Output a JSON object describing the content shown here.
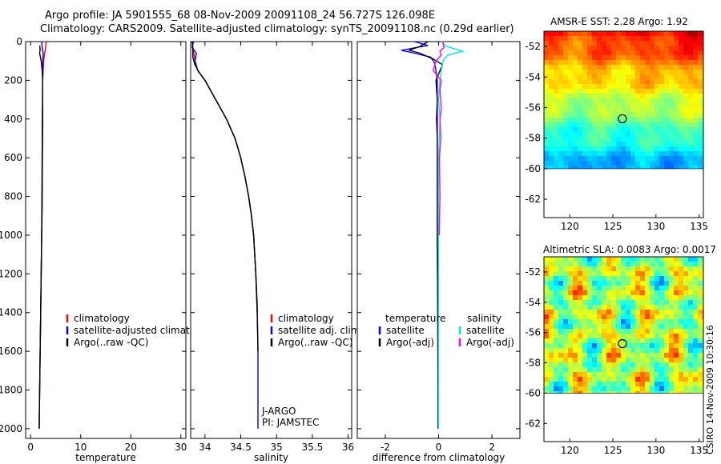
{
  "header": {
    "line1": "Argo profile: JA 5901555_68 08-Nov-2009 20091108_24 56.727S 126.098E",
    "line2": "Climatology: CARS2009. Satellite-adjusted climatology: synTS_20091108.nc (0.29d earlier)"
  },
  "stamp": "CSIRO 14-Nov-2009 10:30:16",
  "chart_data": [
    {
      "type": "line",
      "id": "temperature",
      "xlabel": "temperature",
      "ylabel": "",
      "xlim": [
        -1,
        31
      ],
      "ylim": [
        2050,
        0
      ],
      "xticks": [
        0,
        10,
        20,
        30
      ],
      "yticks": [
        0,
        200,
        400,
        600,
        800,
        1000,
        1200,
        1400,
        1600,
        1800,
        2000
      ],
      "legend": [
        "climatology",
        "satellite-adjusted climatology",
        "Argo(..raw -QC)"
      ],
      "series": [
        {
          "name": "climatology",
          "color": "#ff0000",
          "points": [
            [
              3.1,
              0
            ],
            [
              3.0,
              30
            ],
            [
              2.8,
              60
            ],
            [
              2.6,
              100
            ],
            [
              2.5,
              150
            ],
            [
              2.4,
              200
            ],
            [
              2.4,
              300
            ],
            [
              2.35,
              400
            ],
            [
              2.3,
              600
            ],
            [
              2.3,
              880
            ],
            [
              2.2,
              1000
            ],
            [
              2.1,
              1200
            ],
            [
              2.0,
              1400
            ],
            [
              1.9,
              1600
            ],
            [
              1.8,
              1800
            ],
            [
              1.7,
              2000
            ]
          ]
        },
        {
          "name": "satellite-adjusted climatology",
          "color": "#0000ff",
          "points": [
            [
              2.2,
              0
            ],
            [
              2.3,
              30
            ],
            [
              2.5,
              60
            ],
            [
              2.4,
              100
            ],
            [
              2.4,
              150
            ],
            [
              2.4,
              200
            ],
            [
              2.35,
              400
            ],
            [
              2.3,
              600
            ],
            [
              2.2,
              1000
            ],
            [
              2.0,
              1400
            ],
            [
              1.8,
              1800
            ],
            [
              1.7,
              2000
            ]
          ]
        },
        {
          "name": "Argo(..raw -QC)",
          "color": "#000000",
          "points": [
            [
              1.8,
              20
            ],
            [
              1.9,
              40
            ],
            [
              1.8,
              60
            ],
            [
              2.1,
              100
            ],
            [
              2.3,
              150
            ],
            [
              2.4,
              200
            ],
            [
              2.4,
              400
            ],
            [
              2.35,
              600
            ],
            [
              2.3,
              800
            ],
            [
              2.2,
              1000
            ],
            [
              2.1,
              1200
            ],
            [
              2.0,
              1400
            ],
            [
              1.9,
              1600
            ],
            [
              1.8,
              1800
            ],
            [
              1.7,
              2000
            ]
          ]
        }
      ]
    },
    {
      "type": "line",
      "id": "salinity",
      "xlabel": "salinity",
      "xlim": [
        33.8,
        36.05
      ],
      "ylim": [
        2050,
        0
      ],
      "xticks": [
        34,
        34.5,
        35,
        35.5,
        36
      ],
      "legend": [
        "climatology",
        "satellite adj. clim.",
        "Argo(..raw -QC)"
      ],
      "annotations": [
        "J-ARGO",
        "PI: JAMSTEC"
      ],
      "series": [
        {
          "name": "climatology",
          "color": "#ff0000",
          "points": [
            [
              33.82,
              0
            ],
            [
              33.84,
              50
            ],
            [
              33.86,
              100
            ],
            [
              33.9,
              150
            ],
            [
              34.0,
              200
            ],
            [
              34.15,
              300
            ],
            [
              34.3,
              400
            ],
            [
              34.42,
              500
            ],
            [
              34.5,
              600
            ],
            [
              34.56,
              700
            ],
            [
              34.61,
              800
            ],
            [
              34.65,
              900
            ],
            [
              34.68,
              1000
            ],
            [
              34.71,
              1200
            ],
            [
              34.73,
              1350
            ],
            [
              34.73,
              1400
            ]
          ]
        },
        {
          "name": "satellite adj. clim.",
          "color": "#0000ff",
          "points": [
            [
              33.84,
              0
            ],
            [
              33.82,
              30
            ],
            [
              33.88,
              60
            ],
            [
              33.86,
              100
            ],
            [
              33.9,
              150
            ],
            [
              34.0,
              200
            ],
            [
              34.15,
              300
            ],
            [
              34.3,
              400
            ],
            [
              34.42,
              500
            ],
            [
              34.5,
              600
            ],
            [
              34.56,
              700
            ],
            [
              34.61,
              800
            ],
            [
              34.65,
              900
            ],
            [
              34.68,
              1000
            ],
            [
              34.71,
              1200
            ],
            [
              34.73,
              1400
            ],
            [
              34.74,
              1600
            ],
            [
              34.74,
              1800
            ],
            [
              34.74,
              2000
            ]
          ]
        },
        {
          "name": "Argo(..raw -QC)",
          "color": "#000000",
          "points": [
            [
              33.82,
              0
            ],
            [
              33.83,
              40
            ],
            [
              33.83,
              80
            ],
            [
              33.86,
              120
            ],
            [
              33.92,
              160
            ],
            [
              34.0,
              200
            ],
            [
              34.15,
              300
            ],
            [
              34.3,
              400
            ],
            [
              34.42,
              500
            ],
            [
              34.5,
              600
            ],
            [
              34.56,
              700
            ],
            [
              34.61,
              800
            ],
            [
              34.65,
              900
            ],
            [
              34.68,
              1000
            ],
            [
              34.71,
              1200
            ],
            [
              34.73,
              1400
            ],
            [
              34.74,
              1600
            ]
          ]
        }
      ]
    },
    {
      "type": "line",
      "id": "difference",
      "xlabel": "difference from climatology",
      "xlim": [
        -3.05,
        3.05
      ],
      "ylim": [
        2050,
        0
      ],
      "xticks": [
        -2,
        0,
        2
      ],
      "legend_groups": [
        {
          "title": "temperature",
          "items": [
            {
              "label": "satellite",
              "color": "#0000ff"
            },
            {
              "label": "Argo(-adj)",
              "color": "#000000"
            }
          ]
        },
        {
          "title": "salinity",
          "items": [
            {
              "label": "satellite",
              "color": "#00e5ee"
            },
            {
              "label": "Argo(-adj)",
              "color": "#ff00ff"
            }
          ]
        }
      ],
      "series": [
        {
          "name": "temperature satellite",
          "color": "#0000ff",
          "points": [
            [
              -0.9,
              0
            ],
            [
              -0.4,
              20
            ],
            [
              -1.4,
              45
            ],
            [
              -0.9,
              60
            ],
            [
              -0.3,
              80
            ],
            [
              -0.15,
              110
            ],
            [
              -0.1,
              150
            ],
            [
              -0.05,
              200
            ],
            [
              -0.05,
              300
            ],
            [
              -0.08,
              400
            ],
            [
              -0.05,
              500
            ],
            [
              -0.05,
              600
            ],
            [
              -0.05,
              800
            ],
            [
              -0.05,
              1000
            ],
            [
              -0.03,
              1400
            ],
            [
              -0.02,
              2000
            ]
          ]
        },
        {
          "name": "temperature Argo(-adj)",
          "color": "#000000",
          "points": [
            [
              -0.4,
              0
            ],
            [
              -0.7,
              25
            ],
            [
              -1.1,
              45
            ],
            [
              -0.7,
              60
            ],
            [
              -0.2,
              90
            ],
            [
              0.15,
              120
            ],
            [
              0.05,
              150
            ],
            [
              -0.1,
              200
            ],
            [
              -0.05,
              300
            ],
            [
              -0.05,
              400
            ],
            [
              -0.05,
              600
            ],
            [
              -0.05,
              800
            ],
            [
              -0.05,
              1000
            ],
            [
              -0.03,
              1400
            ],
            [
              -0.02,
              2000
            ]
          ]
        },
        {
          "name": "salinity satellite",
          "color": "#00e5ee",
          "points": [
            [
              0.1,
              0
            ],
            [
              0.3,
              25
            ],
            [
              0.9,
              50
            ],
            [
              0.35,
              70
            ],
            [
              0.2,
              90
            ],
            [
              0.15,
              110
            ],
            [
              0.1,
              150
            ],
            [
              0.05,
              200
            ],
            [
              0.0,
              300
            ],
            [
              0.05,
              400
            ],
            [
              0.0,
              600
            ],
            [
              0.0,
              800
            ],
            [
              0.0,
              1000
            ],
            [
              0.0,
              1400
            ],
            [
              0.0,
              2000
            ]
          ]
        },
        {
          "name": "salinity Argo(-adj)",
          "color": "#ff00ff",
          "points": [
            [
              0.15,
              0
            ],
            [
              0.2,
              30
            ],
            [
              0.05,
              50
            ],
            [
              0.1,
              70
            ],
            [
              -0.1,
              100
            ],
            [
              -0.2,
              150
            ],
            [
              0.1,
              200
            ],
            [
              0.05,
              250
            ],
            [
              0.1,
              350
            ],
            [
              0.05,
              400
            ],
            [
              0.08,
              500
            ],
            [
              0.03,
              600
            ],
            [
              0.05,
              800
            ],
            [
              0.02,
              1000
            ]
          ]
        }
      ]
    },
    {
      "type": "heatmap",
      "id": "sst",
      "title": "AMSR-E SST: 2.28 Argo: 1.92",
      "xlim": [
        117,
        135.5
      ],
      "ylim": [
        -63.2,
        -51
      ],
      "xticks": [
        120,
        125,
        130,
        135
      ],
      "yticks": [
        -52,
        -54,
        -56,
        -58,
        -60,
        -62
      ],
      "data_south_limit": -60,
      "marker": {
        "lon": 126.1,
        "lat": -56.73
      }
    },
    {
      "type": "heatmap",
      "id": "sla",
      "title": "Altimetric SLA: 0.0083 Argo: 0.0017",
      "xlim": [
        117,
        135.5
      ],
      "ylim": [
        -63.2,
        -51
      ],
      "xticks": [
        120,
        125,
        130,
        135
      ],
      "yticks": [
        -52,
        -54,
        -56,
        -58,
        -60,
        -62
      ],
      "data_south_limit": -60,
      "marker": {
        "lon": 126.1,
        "lat": -56.73
      }
    }
  ]
}
